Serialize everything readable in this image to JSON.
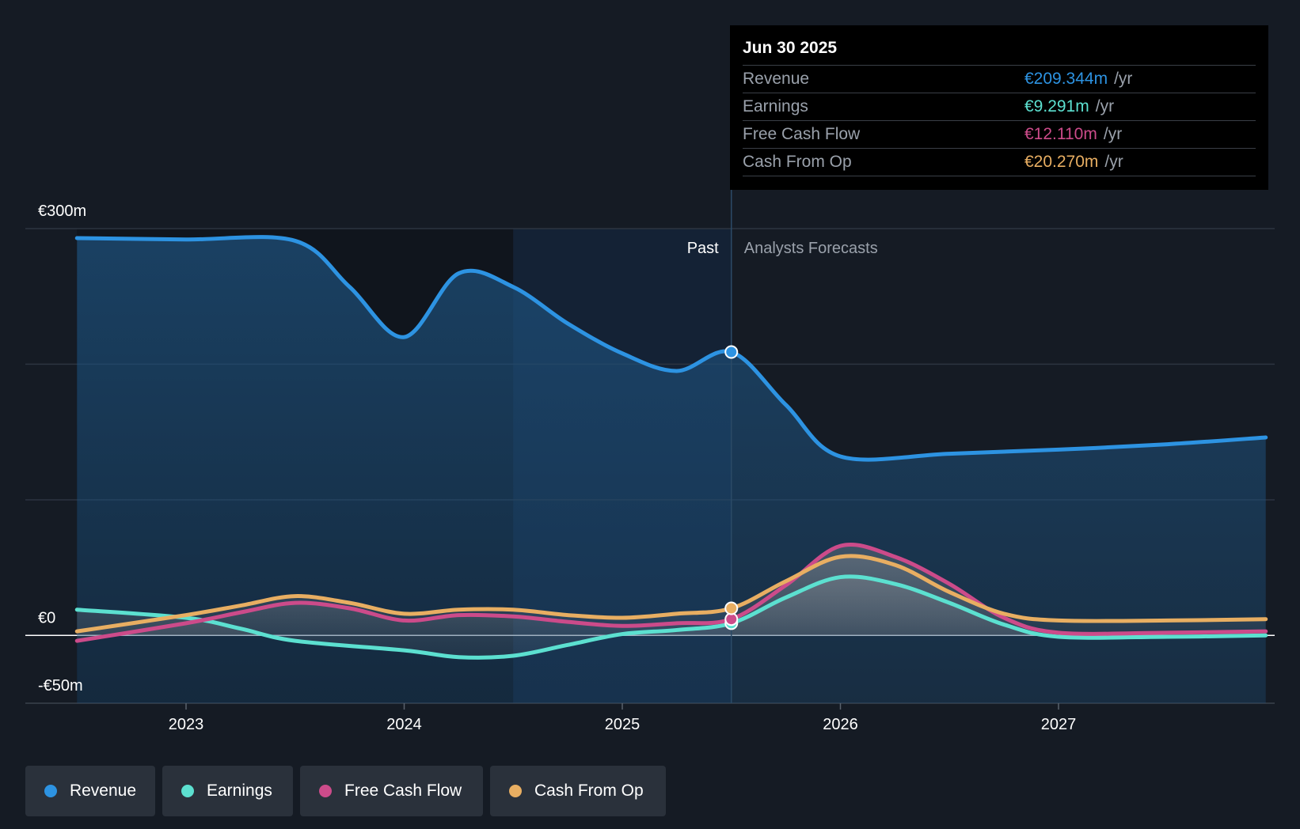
{
  "chart_data": {
    "type": "line",
    "title": "",
    "y_axis": {
      "labels": [
        "€300m",
        "€0",
        "-€50m"
      ],
      "ylim": [
        -50,
        300
      ]
    },
    "x_axis": {
      "ticks": [
        "2023",
        "2024",
        "2025",
        "2026",
        "2027"
      ]
    },
    "divider_labels": {
      "past": "Past",
      "forecast": "Analysts Forecasts"
    },
    "series": [
      {
        "name": "Revenue",
        "color": "#2d93e2",
        "points": [
          [
            2022.5,
            293
          ],
          [
            2023.0,
            292
          ],
          [
            2023.5,
            291
          ],
          [
            2023.75,
            257
          ],
          [
            2024.0,
            220
          ],
          [
            2024.25,
            267
          ],
          [
            2024.5,
            257
          ],
          [
            2024.75,
            230
          ],
          [
            2025.0,
            208
          ],
          [
            2025.25,
            195
          ],
          [
            2025.5,
            209
          ],
          [
            2025.75,
            170
          ],
          [
            2026.0,
            132
          ],
          [
            2026.5,
            134
          ],
          [
            2027.0,
            137
          ],
          [
            2027.5,
            141
          ],
          [
            2027.95,
            146
          ]
        ]
      },
      {
        "name": "Earnings",
        "color": "#5ce0d0",
        "points": [
          [
            2022.5,
            19
          ],
          [
            2023.0,
            13
          ],
          [
            2023.25,
            5
          ],
          [
            2023.5,
            -4
          ],
          [
            2024.0,
            -11
          ],
          [
            2024.25,
            -16
          ],
          [
            2024.5,
            -15
          ],
          [
            2024.75,
            -7
          ],
          [
            2025.0,
            1
          ],
          [
            2025.25,
            4
          ],
          [
            2025.5,
            9
          ],
          [
            2025.75,
            28
          ],
          [
            2026.0,
            43
          ],
          [
            2026.25,
            38
          ],
          [
            2026.5,
            24
          ],
          [
            2026.75,
            8
          ],
          [
            2027.0,
            -1
          ],
          [
            2027.5,
            -1
          ],
          [
            2027.95,
            0
          ]
        ]
      },
      {
        "name": "Free Cash Flow",
        "color": "#cc4b8a",
        "points": [
          [
            2022.5,
            -4
          ],
          [
            2023.0,
            9
          ],
          [
            2023.25,
            17
          ],
          [
            2023.5,
            24
          ],
          [
            2023.75,
            20
          ],
          [
            2024.0,
            11
          ],
          [
            2024.25,
            15
          ],
          [
            2024.5,
            14
          ],
          [
            2024.75,
            10
          ],
          [
            2025.0,
            7
          ],
          [
            2025.25,
            9
          ],
          [
            2025.5,
            12
          ],
          [
            2025.75,
            37
          ],
          [
            2026.0,
            66
          ],
          [
            2026.25,
            58
          ],
          [
            2026.5,
            38
          ],
          [
            2026.75,
            13
          ],
          [
            2027.0,
            2
          ],
          [
            2027.5,
            2
          ],
          [
            2027.95,
            3
          ]
        ]
      },
      {
        "name": "Cash From Op",
        "color": "#e8ae62",
        "points": [
          [
            2022.5,
            3
          ],
          [
            2023.0,
            15
          ],
          [
            2023.25,
            22
          ],
          [
            2023.5,
            29
          ],
          [
            2023.75,
            24
          ],
          [
            2024.0,
            16
          ],
          [
            2024.25,
            19
          ],
          [
            2024.5,
            19
          ],
          [
            2024.75,
            15
          ],
          [
            2025.0,
            13
          ],
          [
            2025.25,
            16
          ],
          [
            2025.5,
            20
          ],
          [
            2025.75,
            40
          ],
          [
            2026.0,
            58
          ],
          [
            2026.25,
            52
          ],
          [
            2026.5,
            32
          ],
          [
            2026.75,
            16
          ],
          [
            2027.0,
            11
          ],
          [
            2027.5,
            11
          ],
          [
            2027.95,
            12
          ]
        ]
      }
    ],
    "tooltip": {
      "date": "Jun 30 2025",
      "rows": [
        {
          "name": "Revenue",
          "value": "€209.344m",
          "unit": "/yr",
          "color": "#2d93e2"
        },
        {
          "name": "Earnings",
          "value": "€9.291m",
          "unit": "/yr",
          "color": "#5ce0d0"
        },
        {
          "name": "Free Cash Flow",
          "value": "€12.110m",
          "unit": "/yr",
          "color": "#cc4b8a"
        },
        {
          "name": "Cash From Op",
          "value": "€20.270m",
          "unit": "/yr",
          "color": "#e8ae62"
        }
      ]
    },
    "highlight_date": 2025.5,
    "legend": [
      {
        "label": "Revenue",
        "color": "#2d93e2"
      },
      {
        "label": "Earnings",
        "color": "#5ce0d0"
      },
      {
        "label": "Free Cash Flow",
        "color": "#cc4b8a"
      },
      {
        "label": "Cash From Op",
        "color": "#e8ae62"
      }
    ]
  }
}
